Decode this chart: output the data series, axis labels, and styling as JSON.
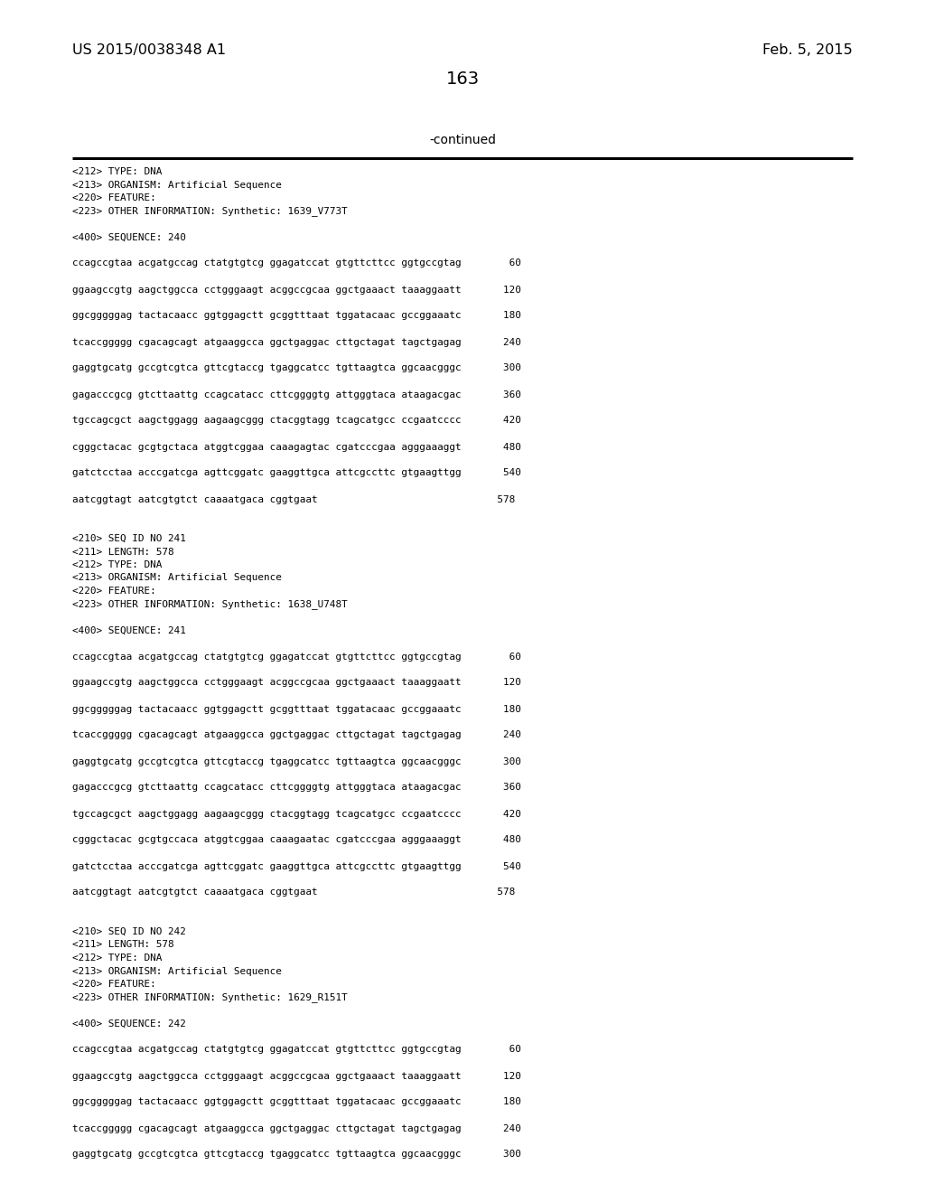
{
  "page_number": "163",
  "patent_left": "US 2015/0038348 A1",
  "patent_right": "Feb. 5, 2015",
  "continued_label": "-continued",
  "background_color": "#ffffff",
  "text_color": "#000000",
  "content_lines": [
    "<212> TYPE: DNA",
    "<213> ORGANISM: Artificial Sequence",
    "<220> FEATURE:",
    "<223> OTHER INFORMATION: Synthetic: 1639_V773T",
    "",
    "<400> SEQUENCE: 240",
    "",
    "ccagccgtaa acgatgccag ctatgtgtcg ggagatccat gtgttcttcc ggtgccgtag        60",
    "",
    "ggaagccgtg aagctggcca cctgggaagt acggccgcaa ggctgaaact taaaggaatt       120",
    "",
    "ggcgggggag tactacaacc ggtggagctt gcggtttaat tggatacaac gccggaaatc       180",
    "",
    "tcaccggggg cgacagcagt atgaaggcca ggctgaggac cttgctagat tagctgagag       240",
    "",
    "gaggtgcatg gccgtcgtca gttcgtaccg tgaggcatcc tgttaagtca ggcaacgggc       300",
    "",
    "gagacccgcg gtcttaattg ccagcatacc cttcggggtg attgggtaca ataagacgac       360",
    "",
    "tgccagcgct aagctggagg aagaagcggg ctacggtagg tcagcatgcc ccgaatcccc       420",
    "",
    "cgggctacac gcgtgctaca atggtcggaa caaagagtac cgatcccgaa agggaaaggt       480",
    "",
    "gatctcctaa acccgatcga agttcggatc gaaggttgca attcgccttc gtgaagttgg       540",
    "",
    "aatcggtagt aatcgtgtct caaaatgaca cggtgaat                              578",
    "",
    "",
    "<210> SEQ ID NO 241",
    "<211> LENGTH: 578",
    "<212> TYPE: DNA",
    "<213> ORGANISM: Artificial Sequence",
    "<220> FEATURE:",
    "<223> OTHER INFORMATION: Synthetic: 1638_U748T",
    "",
    "<400> SEQUENCE: 241",
    "",
    "ccagccgtaa acgatgccag ctatgtgtcg ggagatccat gtgttcttcc ggtgccgtag        60",
    "",
    "ggaagccgtg aagctggcca cctgggaagt acggccgcaa ggctgaaact taaaggaatt       120",
    "",
    "ggcgggggag tactacaacc ggtggagctt gcggtttaat tggatacaac gccggaaatc       180",
    "",
    "tcaccggggg cgacagcagt atgaaggcca ggctgaggac cttgctagat tagctgagag       240",
    "",
    "gaggtgcatg gccgtcgtca gttcgtaccg tgaggcatcc tgttaagtca ggcaacgggc       300",
    "",
    "gagacccgcg gtcttaattg ccagcatacc cttcggggtg attgggtaca ataagacgac       360",
    "",
    "tgccagcgct aagctggagg aagaagcggg ctacggtagg tcagcatgcc ccgaatcccc       420",
    "",
    "cgggctacac gcgtgccaca atggtcggaa caaagaatac cgatcccgaa agggaaaggt       480",
    "",
    "gatctcctaa acccgatcga agttcggatc gaaggttgca attcgccttc gtgaagttgg       540",
    "",
    "aatcggtagt aatcgtgtct caaaatgaca cggtgaat                              578",
    "",
    "",
    "<210> SEQ ID NO 242",
    "<211> LENGTH: 578",
    "<212> TYPE: DNA",
    "<213> ORGANISM: Artificial Sequence",
    "<220> FEATURE:",
    "<223> OTHER INFORMATION: Synthetic: 1629_R151T",
    "",
    "<400> SEQUENCE: 242",
    "",
    "ccagccgtaa acgatgccag ctatgtgtcg ggagatccat gtgttcttcc ggtgccgtag        60",
    "",
    "ggaagccgtg aagctggcca cctgggaagt acggccgcaa ggctgaaact taaaggaatt       120",
    "",
    "ggcgggggag tactacaacc ggtggagctt gcggtttaat tggatacaac gccggaaatc       180",
    "",
    "tcaccggggg cgacagcagt atgaaggcca ggctgaggac cttgctagat tagctgagag       240",
    "",
    "gaggtgcatg gccgtcgtca gttcgtaccg tgaggcatcc tgttaagtca ggcaacgggc       300"
  ]
}
